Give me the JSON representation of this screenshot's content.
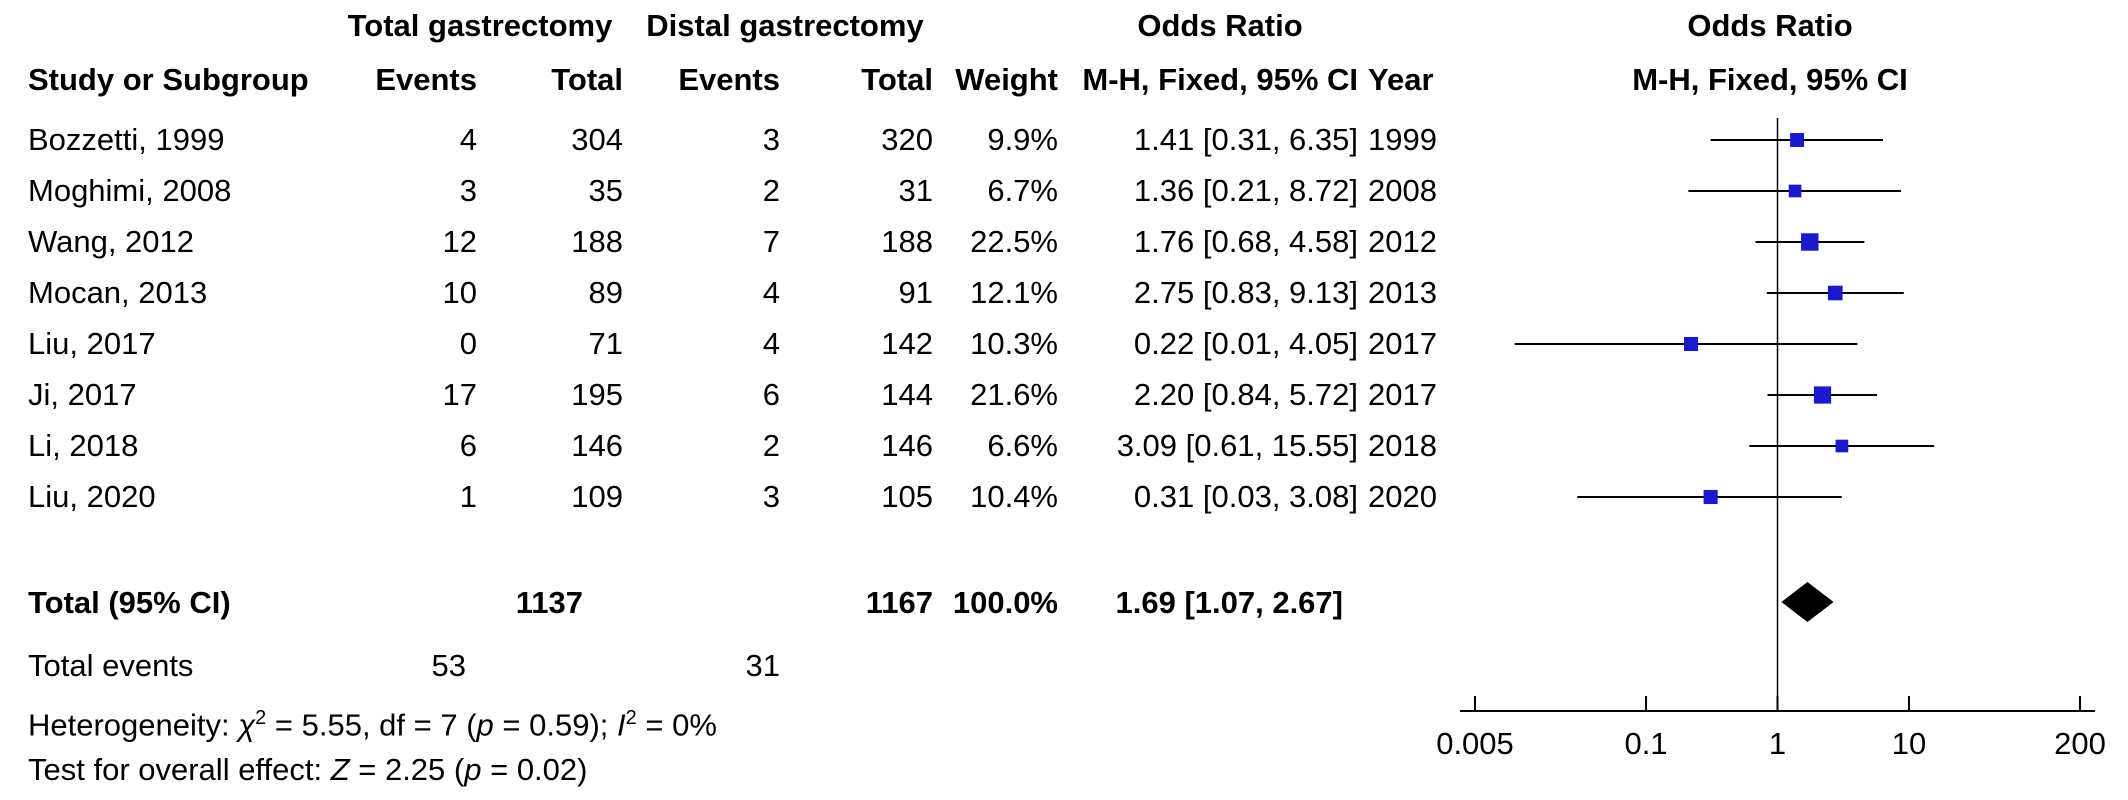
{
  "headers": {
    "group1": "Total gastrectomy",
    "group2": "Distal gastrectomy",
    "or_top": "Odds Ratio",
    "plot_top": "Odds Ratio",
    "study": "Study or Subgroup",
    "events1": "Events",
    "total1": "Total",
    "events2": "Events",
    "total2": "Total",
    "weight": "Weight",
    "or_sub": "M-H, Fixed, 95% CI",
    "year": "Year",
    "plot_sub": "M-H, Fixed, 95% CI"
  },
  "studies": [
    {
      "name": "Bozzetti, 1999",
      "e1": "4",
      "t1": "304",
      "e2": "3",
      "t2": "320",
      "weight": "9.9%",
      "ci": "1.41 [0.31, 6.35]",
      "year": "1999"
    },
    {
      "name": "Moghimi, 2008",
      "e1": "3",
      "t1": "35",
      "e2": "2",
      "t2": "31",
      "weight": "6.7%",
      "ci": "1.36 [0.21, 8.72]",
      "year": "2008"
    },
    {
      "name": "Wang, 2012",
      "e1": "12",
      "t1": "188",
      "e2": "7",
      "t2": "188",
      "weight": "22.5%",
      "ci": "1.76 [0.68, 4.58]",
      "year": "2012"
    },
    {
      "name": "Mocan, 2013",
      "e1": "10",
      "t1": "89",
      "e2": "4",
      "t2": "91",
      "weight": "12.1%",
      "ci": "2.75 [0.83, 9.13]",
      "year": "2013"
    },
    {
      "name": "Liu, 2017",
      "e1": "0",
      "t1": "71",
      "e2": "4",
      "t2": "142",
      "weight": "10.3%",
      "ci": "0.22 [0.01, 4.05]",
      "year": "2017"
    },
    {
      "name": "Ji, 2017",
      "e1": "17",
      "t1": "195",
      "e2": "6",
      "t2": "144",
      "weight": "21.6%",
      "ci": "2.20 [0.84, 5.72]",
      "year": "2017"
    },
    {
      "name": "Li, 2018",
      "e1": "6",
      "t1": "146",
      "e2": "2",
      "t2": "146",
      "weight": "6.6%",
      "ci": "3.09 [0.61, 15.55]",
      "year": "2018"
    },
    {
      "name": "Liu, 2020",
      "e1": "1",
      "t1": "109",
      "e2": "3",
      "t2": "105",
      "weight": "10.4%",
      "ci": "0.31 [0.03, 3.08]",
      "year": "2020"
    }
  ],
  "total": {
    "label": "Total (95% CI)",
    "t1": "1137",
    "t2": "1167",
    "weight": "100.0%",
    "ci": "1.69 [1.07, 2.67]"
  },
  "events_row": {
    "label": "Total events",
    "e1": "53",
    "e2": "31"
  },
  "heterogeneity": {
    "prefix": "Heterogeneity: ",
    "chi": "χ",
    "chi_sup": "2",
    "chi_val": " = 5.55, df = 7 (",
    "p": "p",
    "p_val": " = 0.59); ",
    "i": "I",
    "i_sup": "2",
    "i_val": " = 0%"
  },
  "overall": {
    "prefix": "Test for overall effect: ",
    "z": "Z",
    "z_val": " = 2.25 (",
    "p": "p",
    "p_val": " = 0.02)"
  },
  "chart_data": {
    "type": "forest",
    "title": "Odds Ratio",
    "xlabel": "M-H, Fixed, 95% CI",
    "scale": "log",
    "xlim": [
      0.005,
      200
    ],
    "ticks": [
      0.005,
      0.1,
      1,
      10,
      200
    ],
    "tick_labels": [
      "0.005",
      "0.1",
      "1",
      "10",
      "200"
    ],
    "reference_line": 1,
    "series": [
      {
        "study": "Bozzetti, 1999",
        "or": 1.41,
        "lo": 0.31,
        "hi": 6.35,
        "weight": 9.9
      },
      {
        "study": "Moghimi, 2008",
        "or": 1.36,
        "lo": 0.21,
        "hi": 8.72,
        "weight": 6.7
      },
      {
        "study": "Wang, 2012",
        "or": 1.76,
        "lo": 0.68,
        "hi": 4.58,
        "weight": 22.5
      },
      {
        "study": "Mocan, 2013",
        "or": 2.75,
        "lo": 0.83,
        "hi": 9.13,
        "weight": 12.1
      },
      {
        "study": "Liu, 2017",
        "or": 0.22,
        "lo": 0.01,
        "hi": 4.05,
        "weight": 10.3
      },
      {
        "study": "Ji, 2017",
        "or": 2.2,
        "lo": 0.84,
        "hi": 5.72,
        "weight": 21.6
      },
      {
        "study": "Li, 2018",
        "or": 3.09,
        "lo": 0.61,
        "hi": 15.55,
        "weight": 6.6
      },
      {
        "study": "Liu, 2020",
        "or": 0.31,
        "lo": 0.03,
        "hi": 3.08,
        "weight": 10.4
      }
    ],
    "pooled": {
      "label": "Total (95% CI)",
      "or": 1.69,
      "lo": 1.07,
      "hi": 2.67,
      "weight": 100.0
    },
    "colors": {
      "box": "#1a1acc",
      "line": "#000000",
      "diamond": "#000000"
    }
  }
}
